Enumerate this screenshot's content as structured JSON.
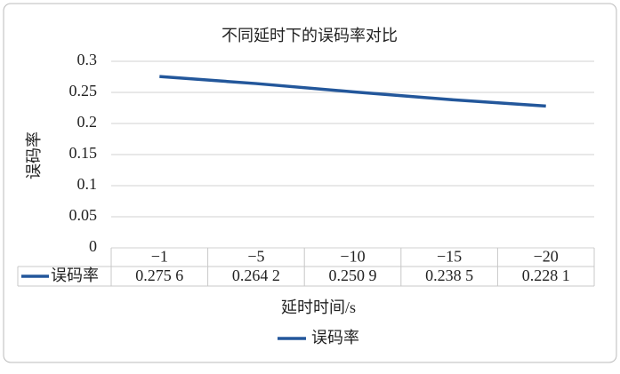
{
  "chart_data": {
    "type": "line",
    "title": "不同延时下的误码率对比",
    "ylabel": "误码率",
    "xlabel": "延时时间/s",
    "categories": [
      "−1",
      "−5",
      "−10",
      "−15",
      "−20"
    ],
    "series": [
      {
        "name": "误码率",
        "color": "#23579b",
        "values": [
          0.2756,
          0.2642,
          0.2509,
          0.2385,
          0.2281
        ],
        "value_labels": [
          "0.275 6",
          "0.264 2",
          "0.250 9",
          "0.238 5",
          "0.228 1"
        ]
      }
    ],
    "ylim": [
      0,
      0.3
    ],
    "yticks": [
      0,
      0.05,
      0.1,
      0.15,
      0.2,
      0.25,
      0.3
    ],
    "grid": true,
    "legend": "bottom"
  }
}
